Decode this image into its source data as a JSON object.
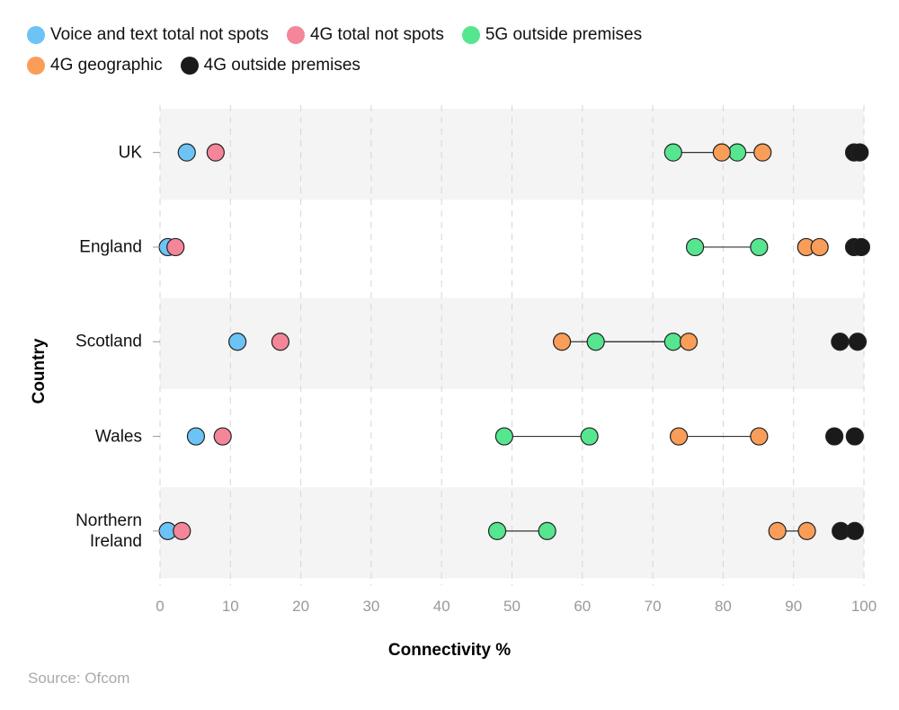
{
  "chart_data": {
    "type": "dumbbell",
    "x_label": "Connectivity %",
    "y_label": "Country",
    "source": "Source: Ofcom",
    "categories": [
      "UK",
      "England",
      "Scotland",
      "Wales",
      "Northern Ireland"
    ],
    "xlim": [
      0,
      100
    ],
    "xticks": [
      0,
      10,
      20,
      30,
      40,
      50,
      60,
      70,
      80,
      90,
      100
    ],
    "grid": true,
    "series": [
      {
        "name": "Voice and text total not spots",
        "color": "#6cc3f5",
        "values": [
          3.8,
          1.1,
          11.0,
          5.1,
          1.1
        ]
      },
      {
        "name": "4G total not spots",
        "color": "#f4869a",
        "values": [
          7.9,
          2.2,
          17.1,
          8.9,
          3.1
        ]
      },
      {
        "name": "5G outside premises",
        "color": "#56e68f",
        "connected": true,
        "values": [
          [
            72.9,
            82.0
          ],
          [
            76.0,
            85.1
          ],
          [
            61.9,
            72.9
          ],
          [
            48.9,
            61.0
          ],
          [
            47.9,
            55.0
          ]
        ]
      },
      {
        "name": "4G geographic",
        "color": "#f99d58",
        "connected": true,
        "values": [
          [
            79.8,
            85.6
          ],
          [
            91.8,
            93.7
          ],
          [
            57.1,
            75.1
          ],
          [
            73.7,
            85.1
          ],
          [
            87.7,
            91.9
          ]
        ]
      },
      {
        "name": "4G outside premises",
        "color": "#1a1a1a",
        "connected": false,
        "values": [
          [
            98.6,
            99.4
          ],
          [
            98.6,
            99.6
          ],
          [
            96.6,
            99.1
          ],
          [
            95.8,
            98.7
          ],
          [
            96.7,
            98.7
          ]
        ]
      }
    ]
  }
}
